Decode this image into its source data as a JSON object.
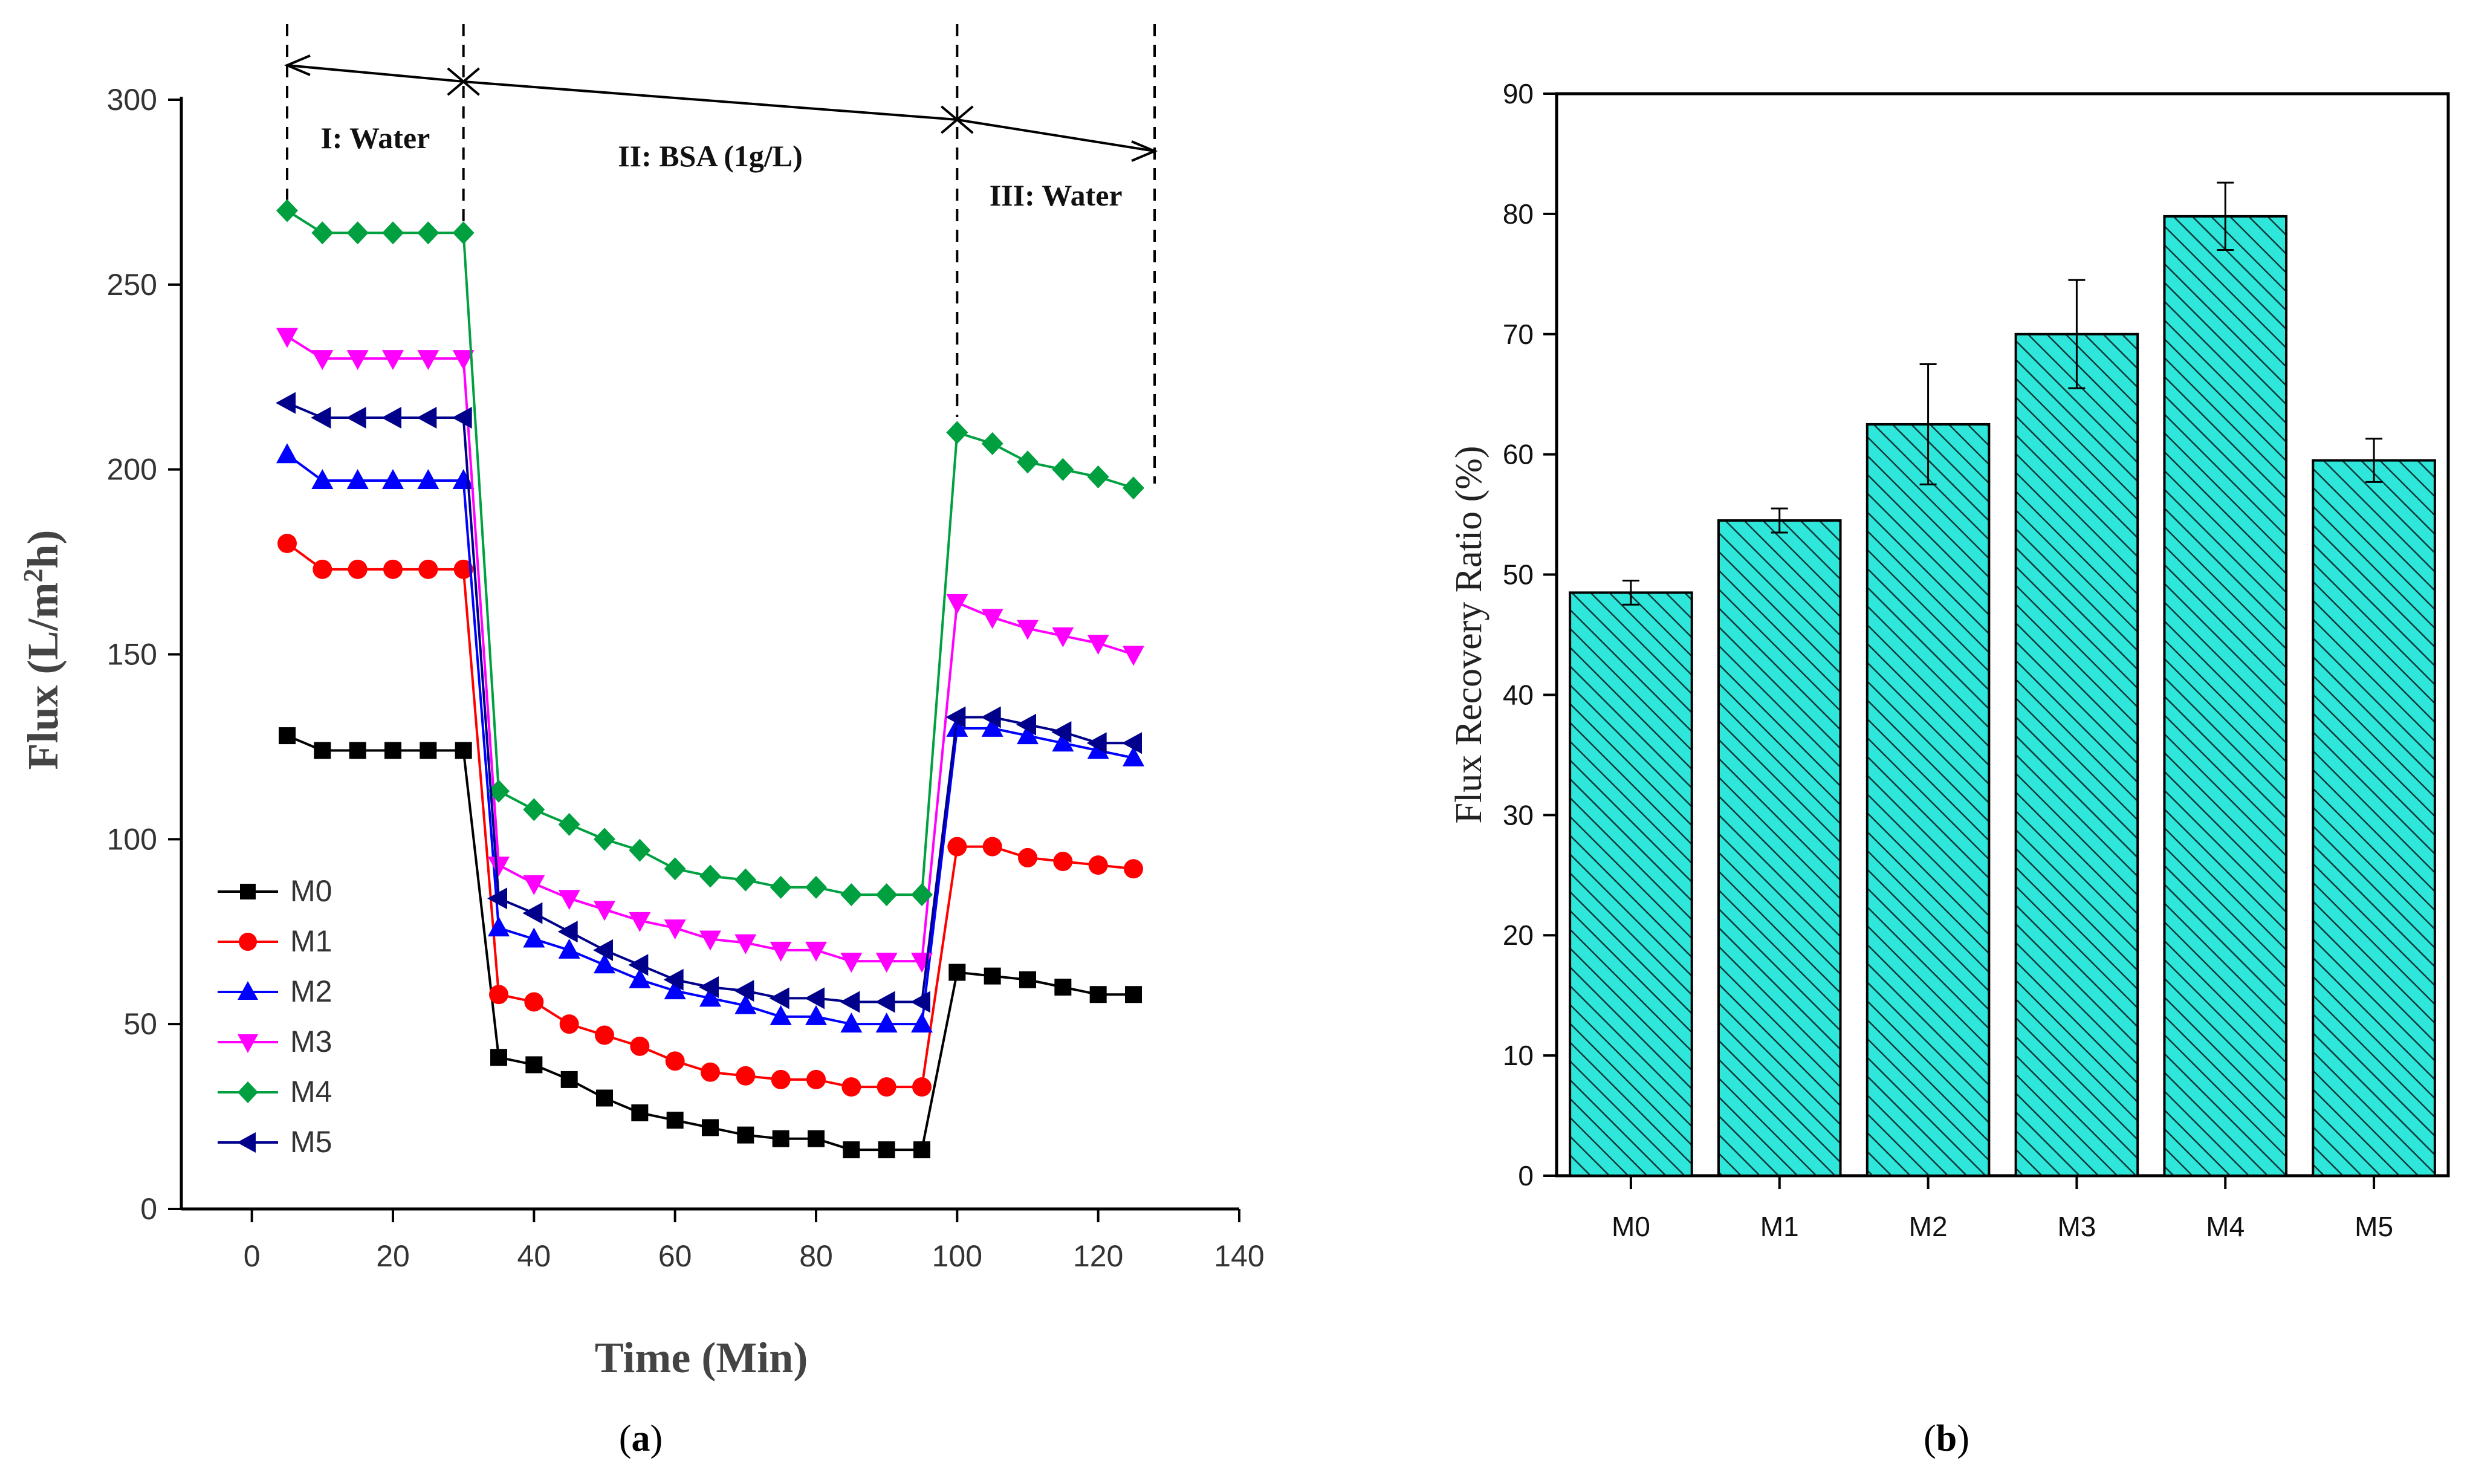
{
  "chart_data": [
    {
      "type": "line",
      "panel_label": "(a)",
      "xlabel": "Time (Min)",
      "ylabel_prefix": "Flux (L/m",
      "ylabel_sup": "2",
      "ylabel_suffix": "h)",
      "xlim": [
        -10,
        140
      ],
      "ylim": [
        0,
        300
      ],
      "xticks": [
        0,
        20,
        40,
        60,
        80,
        100,
        120,
        140
      ],
      "yticks": [
        0,
        50,
        100,
        150,
        200,
        250,
        300
      ],
      "stages": [
        {
          "label": "I: Water",
          "from": 5,
          "to": 30
        },
        {
          "label": "II: BSA (1g/L)",
          "from": 30,
          "to": 100
        },
        {
          "label": "III: Water",
          "from": 100,
          "to": 128
        }
      ],
      "legend_position": "lower-left",
      "series": [
        {
          "name": "M0",
          "color": "#000000",
          "marker": "square",
          "x": [
            5,
            10,
            15,
            20,
            25,
            30,
            35,
            40,
            45,
            50,
            55,
            60,
            65,
            70,
            75,
            80,
            85,
            90,
            95,
            100,
            105,
            110,
            115,
            120,
            125
          ],
          "y": [
            128,
            124,
            124,
            124,
            124,
            124,
            41,
            39,
            35,
            30,
            26,
            24,
            22,
            20,
            19,
            19,
            16,
            16,
            16,
            64,
            63,
            62,
            60,
            58,
            58
          ]
        },
        {
          "name": "M1",
          "color": "#ff0000",
          "marker": "circle",
          "x": [
            5,
            10,
            15,
            20,
            25,
            30,
            35,
            40,
            45,
            50,
            55,
            60,
            65,
            70,
            75,
            80,
            85,
            90,
            95,
            100,
            105,
            110,
            115,
            120,
            125
          ],
          "y": [
            180,
            173,
            173,
            173,
            173,
            173,
            58,
            56,
            50,
            47,
            44,
            40,
            37,
            36,
            35,
            35,
            33,
            33,
            33,
            98,
            98,
            95,
            94,
            93,
            92
          ]
        },
        {
          "name": "M2",
          "color": "#0000ff",
          "marker": "triangle-up",
          "x": [
            5,
            10,
            15,
            20,
            25,
            30,
            35,
            40,
            45,
            50,
            55,
            60,
            65,
            70,
            75,
            80,
            85,
            90,
            95,
            100,
            105,
            110,
            115,
            120,
            125
          ],
          "y": [
            204,
            197,
            197,
            197,
            197,
            197,
            76,
            73,
            70,
            66,
            62,
            59,
            57,
            55,
            52,
            52,
            50,
            50,
            50,
            130,
            130,
            128,
            126,
            124,
            122
          ]
        },
        {
          "name": "M3",
          "color": "#ff00ff",
          "marker": "triangle-down",
          "x": [
            5,
            10,
            15,
            20,
            25,
            30,
            35,
            40,
            45,
            50,
            55,
            60,
            65,
            70,
            75,
            80,
            85,
            90,
            95,
            100,
            105,
            110,
            115,
            120,
            125
          ],
          "y": [
            236,
            230,
            230,
            230,
            230,
            230,
            93,
            88,
            84,
            81,
            78,
            76,
            73,
            72,
            70,
            70,
            67,
            67,
            67,
            164,
            160,
            157,
            155,
            153,
            150
          ]
        },
        {
          "name": "M4",
          "color": "#00a040",
          "marker": "diamond",
          "x": [
            5,
            10,
            15,
            20,
            25,
            30,
            35,
            40,
            45,
            50,
            55,
            60,
            65,
            70,
            75,
            80,
            85,
            90,
            95,
            100,
            105,
            110,
            115,
            120,
            125
          ],
          "y": [
            270,
            264,
            264,
            264,
            264,
            264,
            113,
            108,
            104,
            100,
            97,
            92,
            90,
            89,
            87,
            87,
            85,
            85,
            85,
            210,
            207,
            202,
            200,
            198,
            195
          ]
        },
        {
          "name": "M5",
          "color": "#00008b",
          "marker": "triangle-left",
          "x": [
            5,
            10,
            15,
            20,
            25,
            30,
            35,
            40,
            45,
            50,
            55,
            60,
            65,
            70,
            75,
            80,
            85,
            90,
            95,
            100,
            105,
            110,
            115,
            120,
            125
          ],
          "y": [
            218,
            214,
            214,
            214,
            214,
            214,
            84,
            80,
            75,
            70,
            66,
            62,
            60,
            59,
            57,
            57,
            56,
            56,
            56,
            133,
            133,
            131,
            129,
            126,
            126
          ]
        }
      ]
    },
    {
      "type": "bar",
      "panel_label": "(b)",
      "ylabel": "Flux Recovery Ratio (%)",
      "xlabel": "",
      "categories": [
        "M0",
        "M1",
        "M2",
        "M3",
        "M4",
        "M5"
      ],
      "values": [
        48.5,
        54.5,
        62.5,
        70,
        79.8,
        59.5
      ],
      "errors": [
        1.0,
        1.0,
        5.0,
        4.5,
        2.8,
        1.8
      ],
      "ylim": [
        0,
        90
      ],
      "yticks": [
        0,
        10,
        20,
        30,
        40,
        50,
        60,
        70,
        80,
        90
      ],
      "bar_color": "#2ee6d9",
      "hatch": "diagonal"
    }
  ]
}
